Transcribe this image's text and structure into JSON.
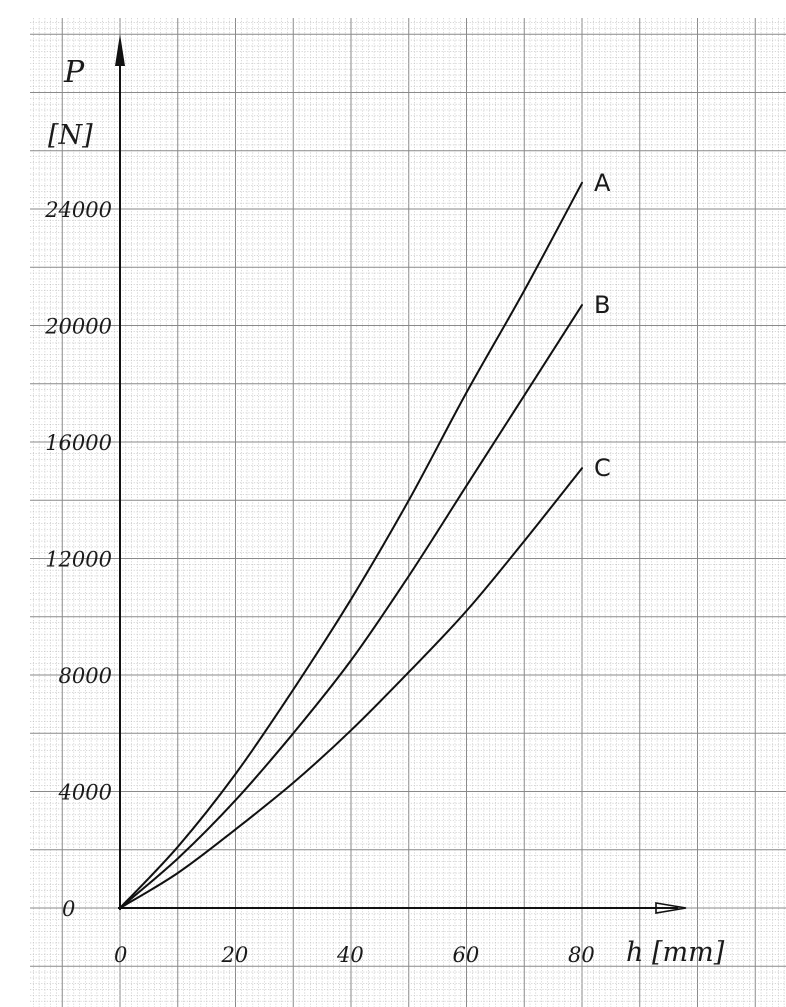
{
  "chart_data": {
    "type": "line",
    "title": "",
    "ylabel": "P",
    "ylabel_unit": "[N]",
    "xlabel": "h [mm]",
    "x_ticks": [
      0,
      20,
      40,
      60,
      80
    ],
    "y_ticks": [
      0,
      4000,
      8000,
      12000,
      16000,
      20000,
      24000
    ],
    "x_tick_labels": [
      "0",
      "20",
      "40",
      "60",
      "80"
    ],
    "y_tick_labels": [
      "0",
      "4000",
      "8000",
      "12000",
      "16000",
      "20000",
      "24000"
    ],
    "xlim": [
      0,
      80
    ],
    "ylim": [
      0,
      24000
    ],
    "grid": true,
    "legend": "labels at line ends",
    "x": [
      0,
      10,
      20,
      30,
      40,
      50,
      60,
      70,
      80
    ],
    "series": [
      {
        "name": "A",
        "values": [
          0,
          2100,
          4600,
          7500,
          10600,
          14000,
          17700,
          21200,
          24900
        ]
      },
      {
        "name": "B",
        "values": [
          0,
          1700,
          3700,
          6000,
          8500,
          11400,
          14500,
          17600,
          20700
        ]
      },
      {
        "name": "C",
        "values": [
          0,
          1200,
          2700,
          4300,
          6100,
          8100,
          10200,
          12600,
          15100
        ]
      }
    ]
  },
  "colors": {
    "paper": "#ffffff",
    "grid_minor": "#bdbdbd",
    "grid_major": "#8a8a8a",
    "ink": "#111111"
  }
}
